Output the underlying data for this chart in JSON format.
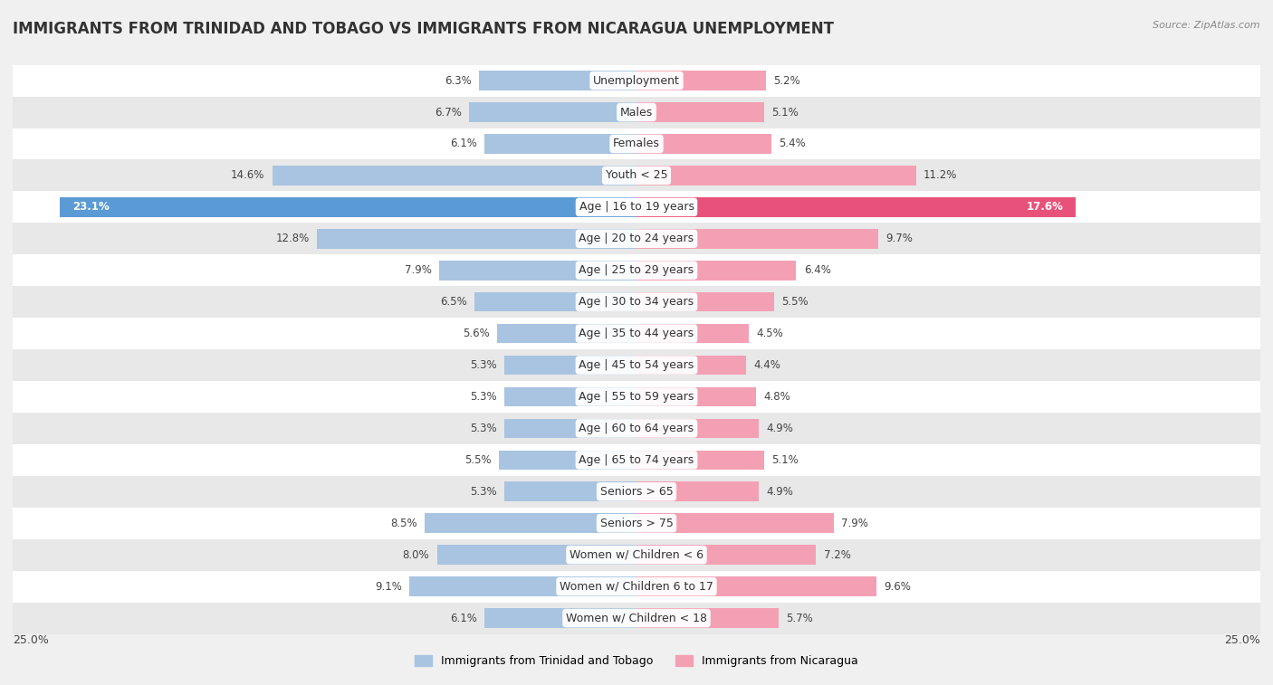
{
  "title": "IMMIGRANTS FROM TRINIDAD AND TOBAGO VS IMMIGRANTS FROM NICARAGUA UNEMPLOYMENT",
  "source": "Source: ZipAtlas.com",
  "categories": [
    "Unemployment",
    "Males",
    "Females",
    "Youth < 25",
    "Age | 16 to 19 years",
    "Age | 20 to 24 years",
    "Age | 25 to 29 years",
    "Age | 30 to 34 years",
    "Age | 35 to 44 years",
    "Age | 45 to 54 years",
    "Age | 55 to 59 years",
    "Age | 60 to 64 years",
    "Age | 65 to 74 years",
    "Seniors > 65",
    "Seniors > 75",
    "Women w/ Children < 6",
    "Women w/ Children 6 to 17",
    "Women w/ Children < 18"
  ],
  "left_values": [
    6.3,
    6.7,
    6.1,
    14.6,
    23.1,
    12.8,
    7.9,
    6.5,
    5.6,
    5.3,
    5.3,
    5.3,
    5.5,
    5.3,
    8.5,
    8.0,
    9.1,
    6.1
  ],
  "right_values": [
    5.2,
    5.1,
    5.4,
    11.2,
    17.6,
    9.7,
    6.4,
    5.5,
    4.5,
    4.4,
    4.8,
    4.9,
    5.1,
    4.9,
    7.9,
    7.2,
    9.6,
    5.7
  ],
  "left_color": "#a8c4e0",
  "right_color": "#f4a0b4",
  "left_highlight_color": "#5b9bd5",
  "right_highlight_color": "#e8527a",
  "highlight_index": 4,
  "left_label": "Immigrants from Trinidad and Tobago",
  "right_label": "Immigrants from Nicaragua",
  "xlim": 25.0,
  "bar_height": 0.62,
  "bg_color": "#f0f0f0",
  "row_colors": [
    "#ffffff",
    "#e8e8e8"
  ],
  "title_fontsize": 12,
  "label_fontsize": 9,
  "value_fontsize": 8.5,
  "axis_label_fontsize": 9
}
